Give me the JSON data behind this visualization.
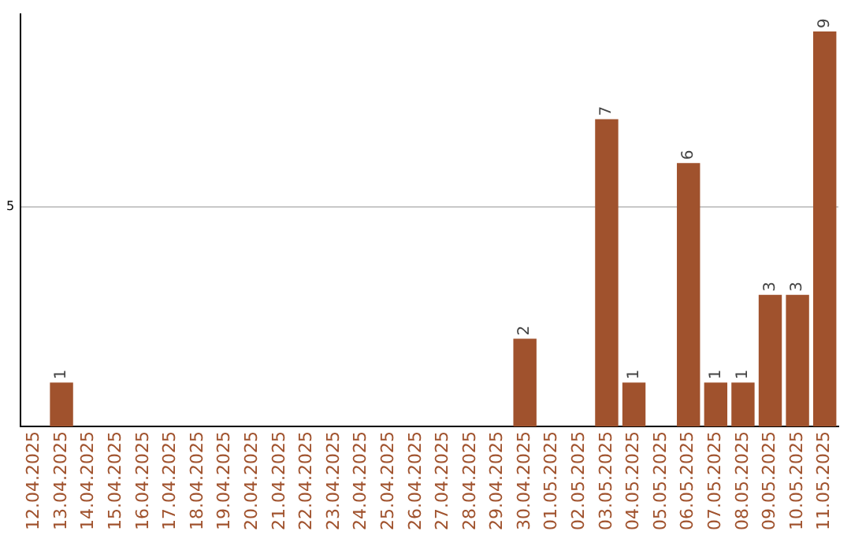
{
  "chart_data": {
    "type": "bar",
    "categories": [
      "12.04.2025",
      "13.04.2025",
      "14.04.2025",
      "15.04.2025",
      "16.04.2025",
      "17.04.2025",
      "18.04.2025",
      "19.04.2025",
      "20.04.2025",
      "21.04.2025",
      "22.04.2025",
      "23.04.2025",
      "24.04.2025",
      "25.04.2025",
      "26.04.2025",
      "27.04.2025",
      "28.04.2025",
      "29.04.2025",
      "30.04.2025",
      "01.05.2025",
      "02.05.2025",
      "03.05.2025",
      "04.05.2025",
      "05.05.2025",
      "06.05.2025",
      "07.05.2025",
      "08.05.2025",
      "09.05.2025",
      "10.05.2025",
      "11.05.2025"
    ],
    "values": [
      0,
      1,
      0,
      0,
      0,
      0,
      0,
      0,
      0,
      0,
      0,
      0,
      0,
      0,
      0,
      0,
      0,
      0,
      2,
      0,
      0,
      7,
      1,
      0,
      6,
      1,
      1,
      3,
      3,
      9
    ],
    "value_labels": [
      null,
      "1",
      null,
      null,
      null,
      null,
      null,
      null,
      null,
      null,
      null,
      null,
      null,
      null,
      null,
      null,
      null,
      null,
      "2",
      null,
      null,
      "7",
      "1",
      null,
      "6",
      "1",
      "1",
      "3",
      "3",
      "9"
    ],
    "color": "#a0522d",
    "ylim": [
      0,
      9.4
    ],
    "yticks": [
      5
    ],
    "grid": "y",
    "legend": false
  }
}
